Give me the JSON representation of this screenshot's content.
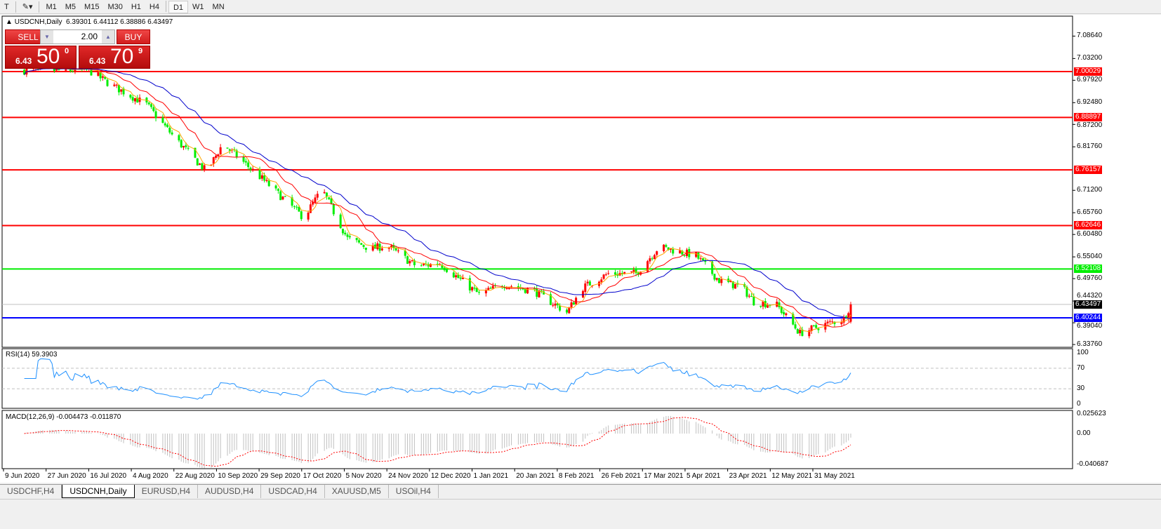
{
  "toolbar": {
    "timeframes": [
      "M1",
      "M5",
      "M15",
      "M30",
      "H1",
      "H4",
      "D1",
      "W1",
      "MN"
    ],
    "active": "D1"
  },
  "chart": {
    "symbol_title": "USDCNH,Daily",
    "ohlc": "6.39301 6.44112 6.38886 6.43497"
  },
  "trade": {
    "sell_label": "SELL",
    "buy_label": "BUY",
    "lot": "2.00",
    "sell": {
      "small": "6.43",
      "big": "50",
      "pip": "0"
    },
    "buy": {
      "small": "6.43",
      "big": "70",
      "pip": "9"
    }
  },
  "price_axis": [
    "7.08640",
    "7.03200",
    "6.97920",
    "6.92480",
    "6.87200",
    "6.81760",
    "6.71200",
    "6.65760",
    "6.60480",
    "6.55040",
    "6.49760",
    "6.44320",
    "6.39040",
    "6.33760"
  ],
  "lines": [
    {
      "price": "7.00029",
      "color": "#ff0000"
    },
    {
      "price": "6.88897",
      "color": "#ff0000"
    },
    {
      "price": "6.76157",
      "color": "#ff0000"
    },
    {
      "price": "6.62646",
      "color": "#ff0000"
    },
    {
      "price": "6.52108",
      "color": "#00ee00"
    },
    {
      "price": "6.40244",
      "color": "#0000ff"
    }
  ],
  "current_price": "6.43497",
  "rsi": {
    "title": "RSI(14) 59.3903",
    "axis": [
      "100",
      "70",
      "30",
      "0"
    ]
  },
  "macd": {
    "title": "MACD(12,26,9) -0.004473 -0.011870",
    "axis": [
      "0.025623",
      "0.00",
      "-0.040687"
    ]
  },
  "date_axis": [
    "9 Jun 2020",
    "27 Jun 2020",
    "16 Jul 2020",
    "4 Aug 2020",
    "22 Aug 2020",
    "10 Sep 2020",
    "29 Sep 2020",
    "17 Oct 2020",
    "5 Nov 2020",
    "24 Nov 2020",
    "12 Dec 2020",
    "1 Jan 2021",
    "20 Jan 2021",
    "8 Feb 2021",
    "26 Feb 2021",
    "17 Mar 2021",
    "5 Apr 2021",
    "23 Apr 2021",
    "12 May 2021",
    "31 May 2021"
  ],
  "tabs": [
    "USDCHF,H4",
    "USDCNH,Daily",
    "EURUSD,H4",
    "AUDUSD,H4",
    "USDCAD,H4",
    "XAUUSD,M5",
    "USOil,H4"
  ],
  "active_tab": "USDCNH,Daily",
  "colors": {
    "bear_candle": "#00ee00",
    "bull_candle": "#ff0000",
    "ma_fast": "#ffa500",
    "ma_mid": "#ff0000",
    "ma_slow": "#0000cc",
    "rsi": "#1e90ff",
    "macd_hist": "#c0c0c0",
    "macd_signal": "#ff0000"
  },
  "chart_data": {
    "type": "candlestick",
    "waypoints": [
      [
        "2020-06-22",
        7.003
      ],
      [
        "2020-07-16",
        7.003
      ],
      [
        "2020-07-25",
        6.97
      ],
      [
        "2020-08-10",
        6.92
      ],
      [
        "2020-08-22",
        6.84
      ],
      [
        "2020-09-05",
        6.757
      ],
      [
        "2020-09-12",
        6.825
      ],
      [
        "2020-09-29",
        6.74
      ],
      [
        "2020-10-17",
        6.646
      ],
      [
        "2020-10-25",
        6.714
      ],
      [
        "2020-11-05",
        6.595
      ],
      [
        "2020-11-15",
        6.57
      ],
      [
        "2020-11-22",
        6.578
      ],
      [
        "2020-12-05",
        6.527
      ],
      [
        "2020-12-15",
        6.535
      ],
      [
        "2021-01-01",
        6.459
      ],
      [
        "2021-01-12",
        6.484
      ],
      [
        "2021-01-25",
        6.467
      ],
      [
        "2021-02-08",
        6.416
      ],
      [
        "2021-02-15",
        6.476
      ],
      [
        "2021-02-26",
        6.51
      ],
      [
        "2021-03-10",
        6.51
      ],
      [
        "2021-03-20",
        6.575
      ],
      [
        "2021-04-05",
        6.553
      ],
      [
        "2021-04-15",
        6.493
      ],
      [
        "2021-04-25",
        6.476
      ],
      [
        "2021-04-30",
        6.442
      ],
      [
        "2021-05-10",
        6.433
      ],
      [
        "2021-05-20",
        6.365
      ],
      [
        "2021-05-30",
        6.385
      ],
      [
        "2021-06-08",
        6.4
      ],
      [
        "2021-06-11",
        6.43497
      ]
    ]
  }
}
